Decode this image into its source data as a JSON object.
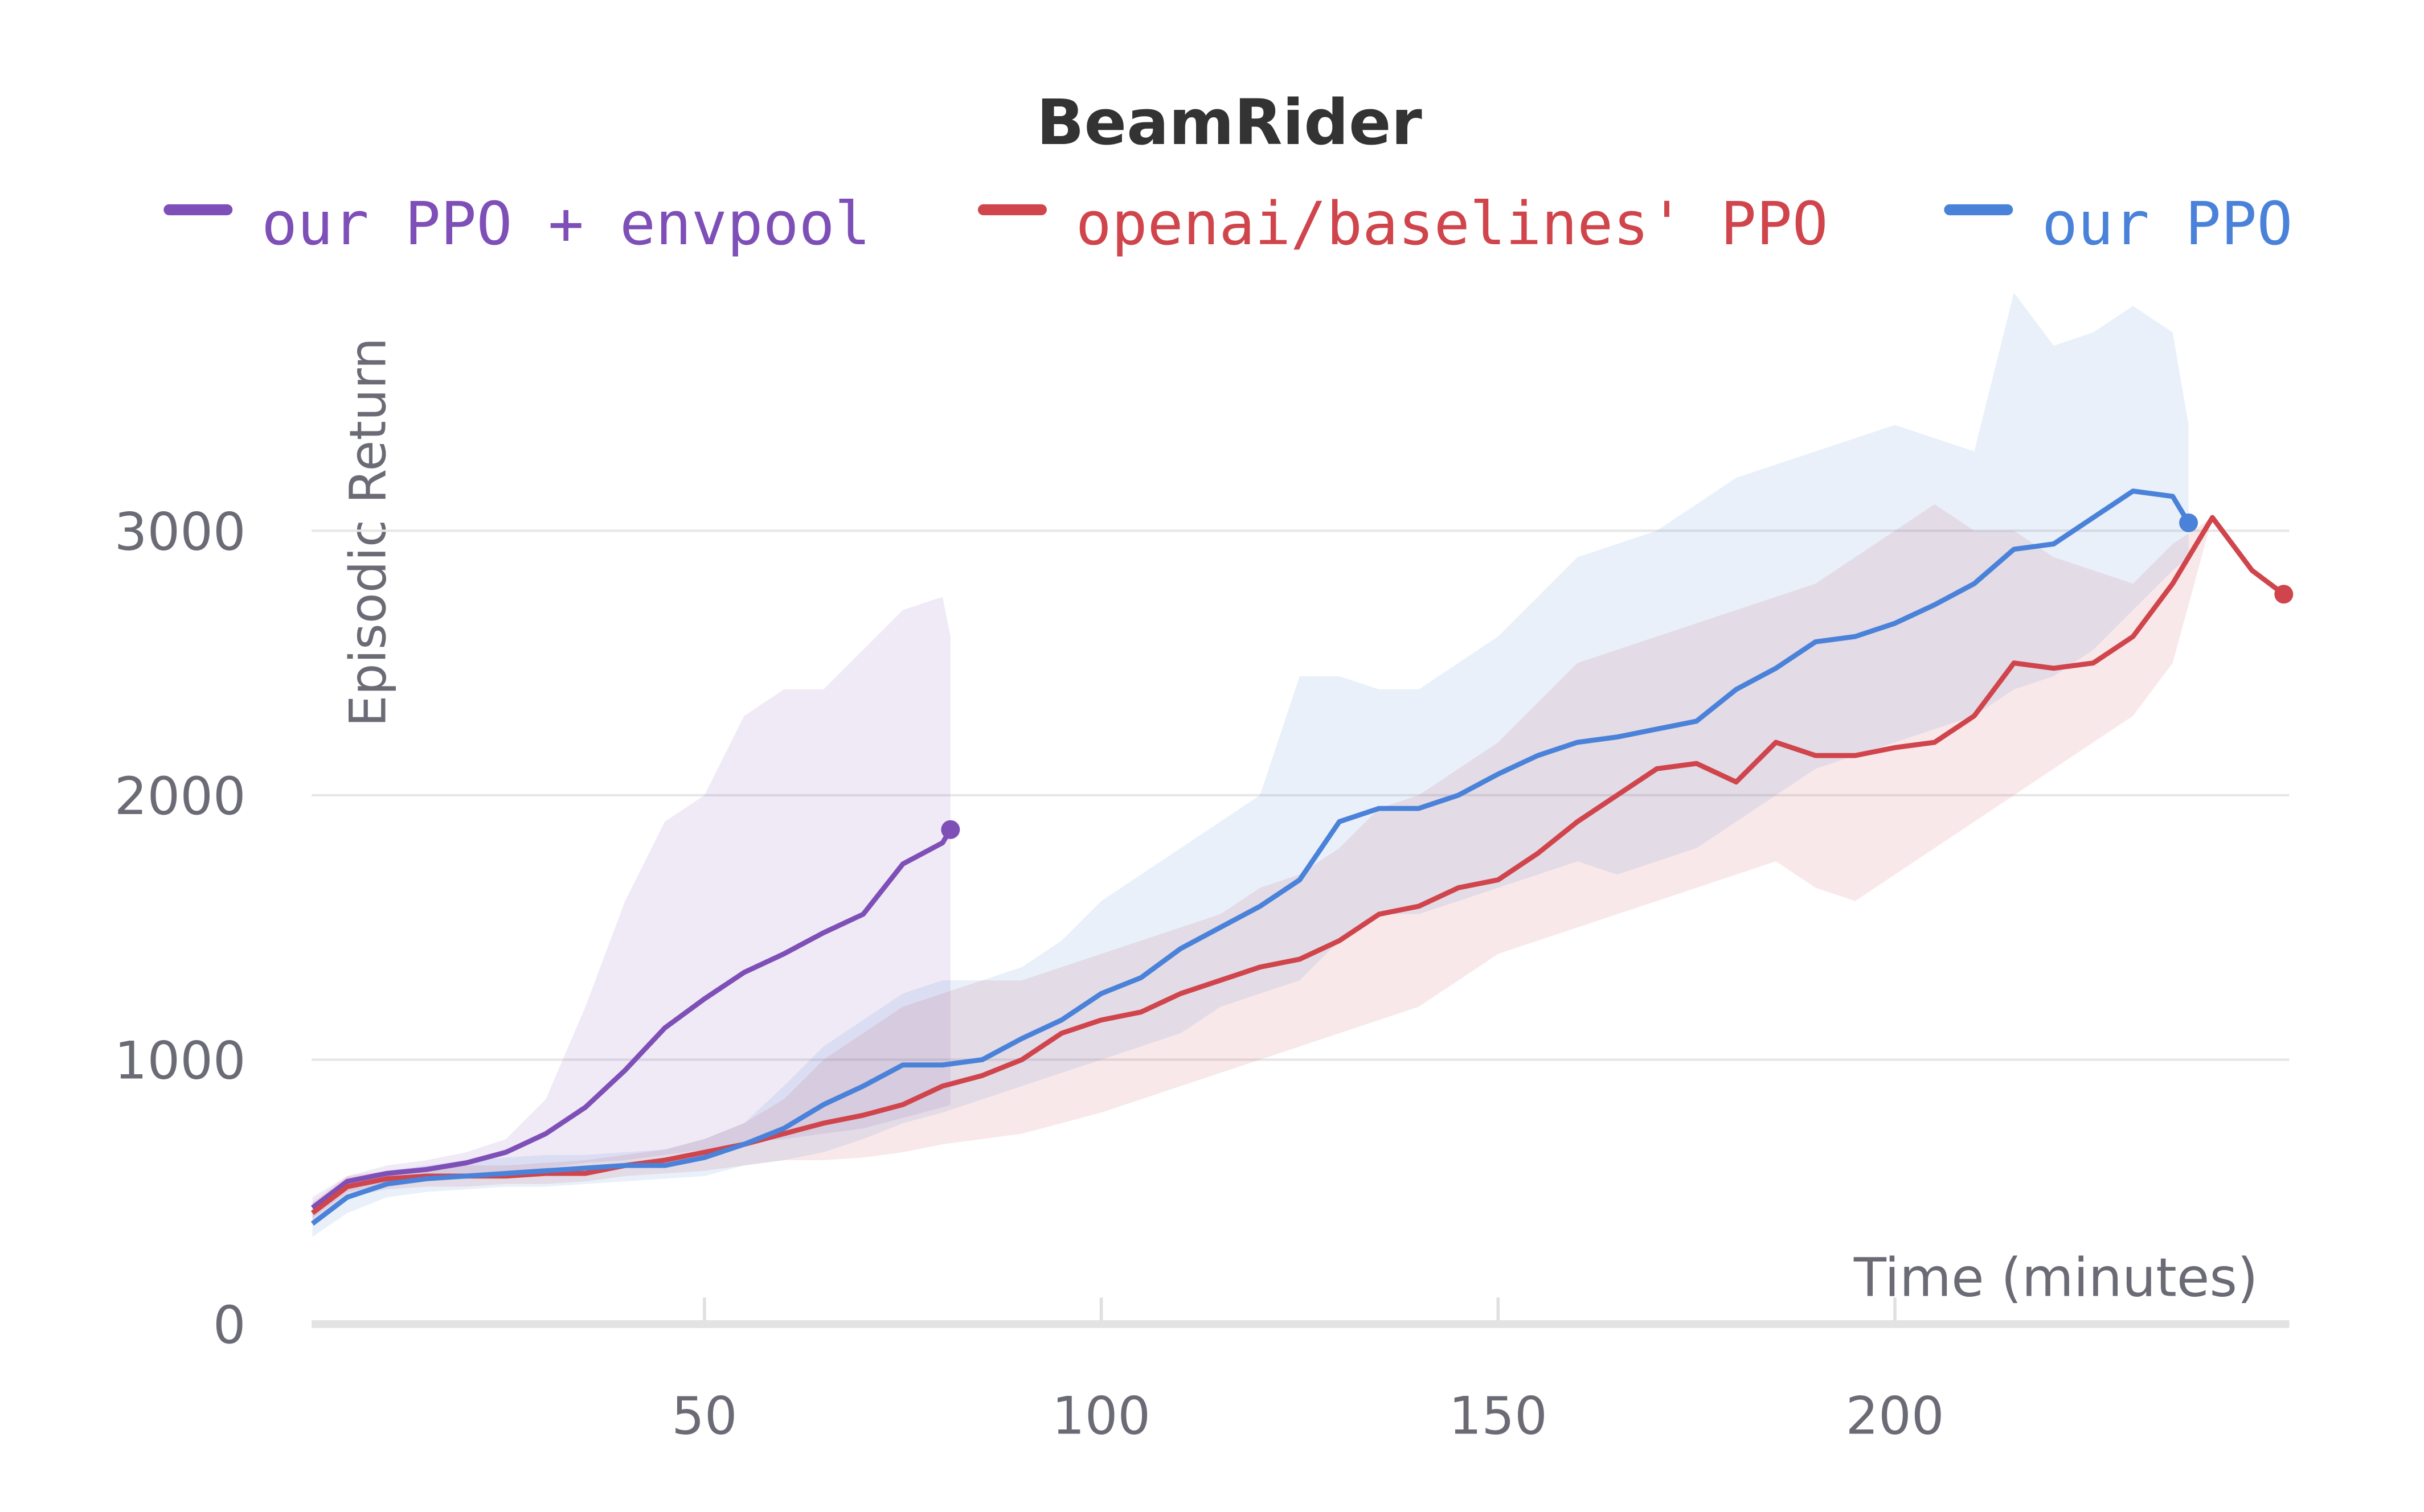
{
  "chart_data": {
    "type": "line",
    "title": "BeamRider",
    "xlabel": "Time (minutes)",
    "ylabel": "Episodic Return",
    "xlim": [
      0.5,
      249.7
    ],
    "ylim": [
      0,
      3900
    ],
    "xticks": [
      50,
      100,
      150,
      200
    ],
    "yticks": [
      0,
      1000,
      2000,
      3000
    ],
    "grid": true,
    "legend": "top",
    "series": [
      {
        "name": "our PPO + envpool",
        "color": "#7e4fb7",
        "x": [
          0.6,
          5,
          10,
          15,
          20,
          25,
          30,
          35,
          40,
          45,
          50,
          55,
          60,
          65,
          70,
          75,
          80,
          81
        ],
        "values": [
          440,
          540,
          570,
          585,
          610,
          650,
          720,
          820,
          960,
          1120,
          1230,
          1330,
          1400,
          1480,
          1550,
          1740,
          1820,
          1870
        ],
        "upper": [
          480,
          560,
          600,
          620,
          650,
          700,
          850,
          1200,
          1600,
          1900,
          2000,
          2300,
          2400,
          2400,
          2550,
          2700,
          2750,
          2600
        ],
        "lower": [
          400,
          500,
          530,
          550,
          560,
          570,
          590,
          610,
          620,
          640,
          660,
          690,
          700,
          720,
          740,
          780,
          820,
          830
        ]
      },
      {
        "name": "openai/baselines' PPO",
        "color": "#d0454c",
        "x": [
          0.6,
          5,
          10,
          15,
          20,
          25,
          30,
          35,
          40,
          45,
          50,
          55,
          60,
          65,
          70,
          75,
          80,
          85,
          90,
          95,
          100,
          105,
          110,
          115,
          120,
          125,
          130,
          135,
          140,
          145,
          150,
          155,
          160,
          165,
          170,
          175,
          180,
          185,
          190,
          195,
          200,
          205,
          210,
          215,
          220,
          225,
          230,
          235,
          240,
          245,
          249
        ],
        "values": [
          420,
          520,
          550,
          560,
          560,
          560,
          570,
          570,
          600,
          620,
          650,
          680,
          720,
          760,
          790,
          830,
          900,
          940,
          1000,
          1100,
          1150,
          1180,
          1250,
          1300,
          1350,
          1380,
          1450,
          1550,
          1580,
          1650,
          1680,
          1780,
          1900,
          2000,
          2100,
          2120,
          2050,
          2200,
          2150,
          2150,
          2180,
          2200,
          2300,
          2500,
          2480,
          2500,
          2600,
          2800,
          3050,
          2850,
          2760
        ],
        "upper": [
          460,
          560,
          580,
          590,
          600,
          600,
          610,
          620,
          640,
          660,
          700,
          760,
          850,
          1000,
          1100,
          1200,
          1250,
          1300,
          1300,
          1350,
          1400,
          1450,
          1500,
          1550,
          1650,
          1700,
          1800,
          1950,
          2000,
          2100,
          2200,
          2350,
          2500,
          2550,
          2600,
          2650,
          2700,
          2750,
          2800,
          2900,
          3000,
          3100,
          3000,
          3000,
          2900,
          2850,
          2800,
          2950,
          3050,
          2850,
          2760
        ],
        "lower": [
          380,
          480,
          510,
          520,
          520,
          530,
          530,
          540,
          560,
          570,
          580,
          600,
          620,
          620,
          630,
          650,
          680,
          700,
          720,
          760,
          800,
          850,
          900,
          950,
          1000,
          1050,
          1100,
          1150,
          1200,
          1300,
          1400,
          1450,
          1500,
          1550,
          1600,
          1650,
          1700,
          1750,
          1650,
          1600,
          1700,
          1800,
          1900,
          2000,
          2100,
          2200,
          2300,
          2500,
          3050,
          2850,
          2760
        ]
      },
      {
        "name": "our PPO",
        "color": "#4a82d9",
        "x": [
          0.6,
          5,
          10,
          15,
          20,
          25,
          30,
          35,
          40,
          45,
          50,
          55,
          60,
          65,
          70,
          75,
          80,
          85,
          90,
          95,
          100,
          105,
          110,
          115,
          120,
          125,
          130,
          135,
          140,
          145,
          150,
          155,
          160,
          165,
          170,
          175,
          180,
          185,
          190,
          195,
          200,
          205,
          210,
          215,
          220,
          225,
          230,
          235,
          237
        ],
        "values": [
          380,
          480,
          530,
          550,
          560,
          570,
          580,
          590,
          600,
          600,
          630,
          680,
          740,
          830,
          900,
          980,
          980,
          1000,
          1080,
          1150,
          1250,
          1310,
          1420,
          1500,
          1580,
          1680,
          1900,
          1950,
          1950,
          2000,
          2080,
          2150,
          2200,
          2220,
          2250,
          2280,
          2400,
          2480,
          2580,
          2600,
          2650,
          2720,
          2800,
          2930,
          2950,
          3050,
          3150,
          3130,
          3030
        ],
        "upper": [
          450,
          540,
          580,
          600,
          620,
          630,
          640,
          640,
          650,
          660,
          700,
          760,
          900,
          1050,
          1150,
          1250,
          1300,
          1300,
          1350,
          1450,
          1600,
          1700,
          1800,
          1900,
          2000,
          2450,
          2450,
          2400,
          2400,
          2500,
          2600,
          2750,
          2900,
          2950,
          3000,
          3100,
          3200,
          3250,
          3300,
          3350,
          3400,
          3350,
          3300,
          3900,
          3700,
          3750,
          3850,
          3750,
          3400
        ],
        "lower": [
          330,
          420,
          480,
          500,
          510,
          520,
          520,
          530,
          540,
          550,
          560,
          600,
          620,
          650,
          700,
          760,
          800,
          850,
          900,
          950,
          1000,
          1050,
          1100,
          1200,
          1250,
          1300,
          1450,
          1550,
          1550,
          1600,
          1650,
          1700,
          1750,
          1700,
          1750,
          1800,
          1900,
          2000,
          2100,
          2150,
          2200,
          2250,
          2300,
          2400,
          2450,
          2550,
          2700,
          2850,
          2900
        ]
      }
    ]
  }
}
